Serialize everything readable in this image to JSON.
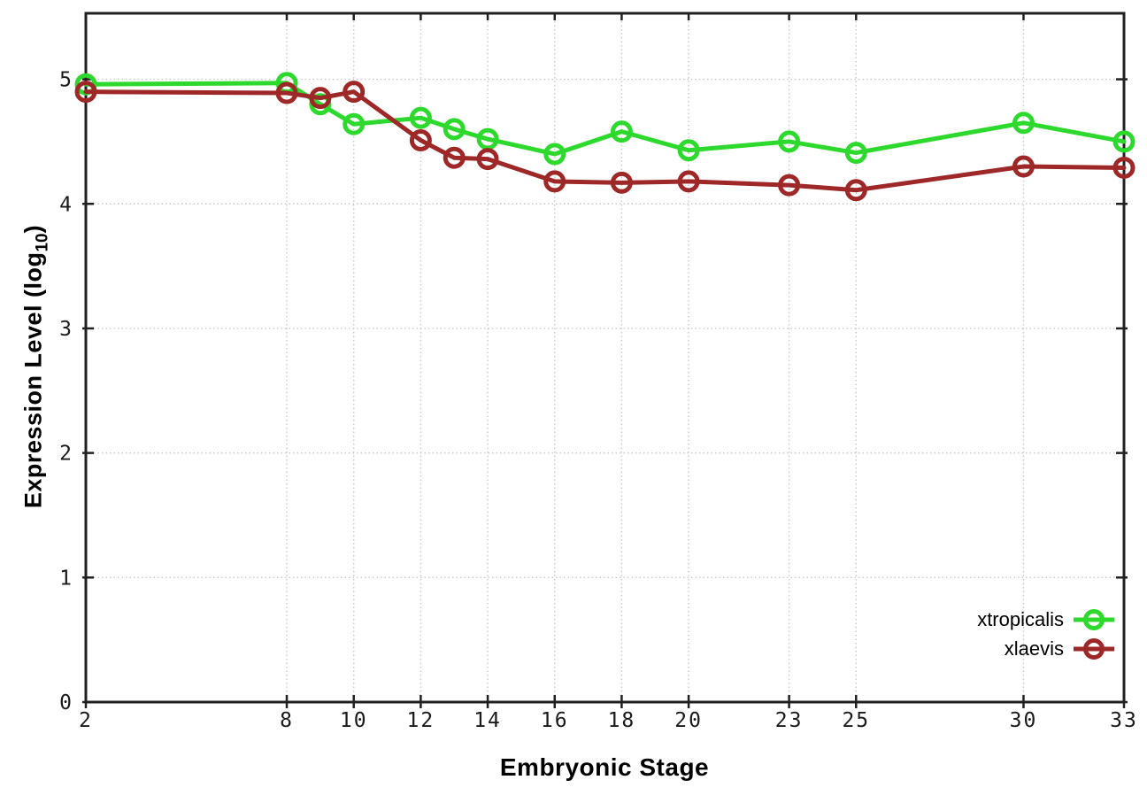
{
  "chart_data": {
    "type": "line",
    "x": [
      2,
      8,
      9,
      10,
      12,
      13,
      14,
      16,
      18,
      20,
      23,
      25,
      30,
      33
    ],
    "series": [
      {
        "name": "xtropicalis",
        "color": "#2cd92c",
        "values": [
          4.96,
          4.97,
          4.8,
          4.64,
          4.69,
          4.6,
          4.52,
          4.4,
          4.58,
          4.43,
          4.5,
          4.41,
          4.65,
          4.5
        ]
      },
      {
        "name": "xlaevis",
        "color": "#9e2828",
        "values": [
          4.9,
          4.89,
          4.85,
          4.9,
          4.51,
          4.37,
          4.36,
          4.18,
          4.17,
          4.18,
          4.15,
          4.11,
          4.3,
          4.29
        ]
      }
    ],
    "xlabel": "Embryonic Stage",
    "ylabel_main": "Expression Level (log",
    "ylabel_sub": "10",
    "ylabel_close": ")",
    "xticks": [
      2,
      8,
      10,
      12,
      14,
      16,
      18,
      20,
      23,
      25,
      30,
      33
    ],
    "yticks": [
      0,
      1,
      2,
      3,
      4,
      5
    ],
    "xlim": [
      2,
      33
    ],
    "ylim": [
      0,
      5.53
    ],
    "grid": true,
    "legend_position": "bottom-right",
    "colors": {
      "axis": "#202020",
      "grid": "#c8c8c8",
      "tick_text": "#1a1a1a",
      "background": "#ffffff"
    }
  }
}
